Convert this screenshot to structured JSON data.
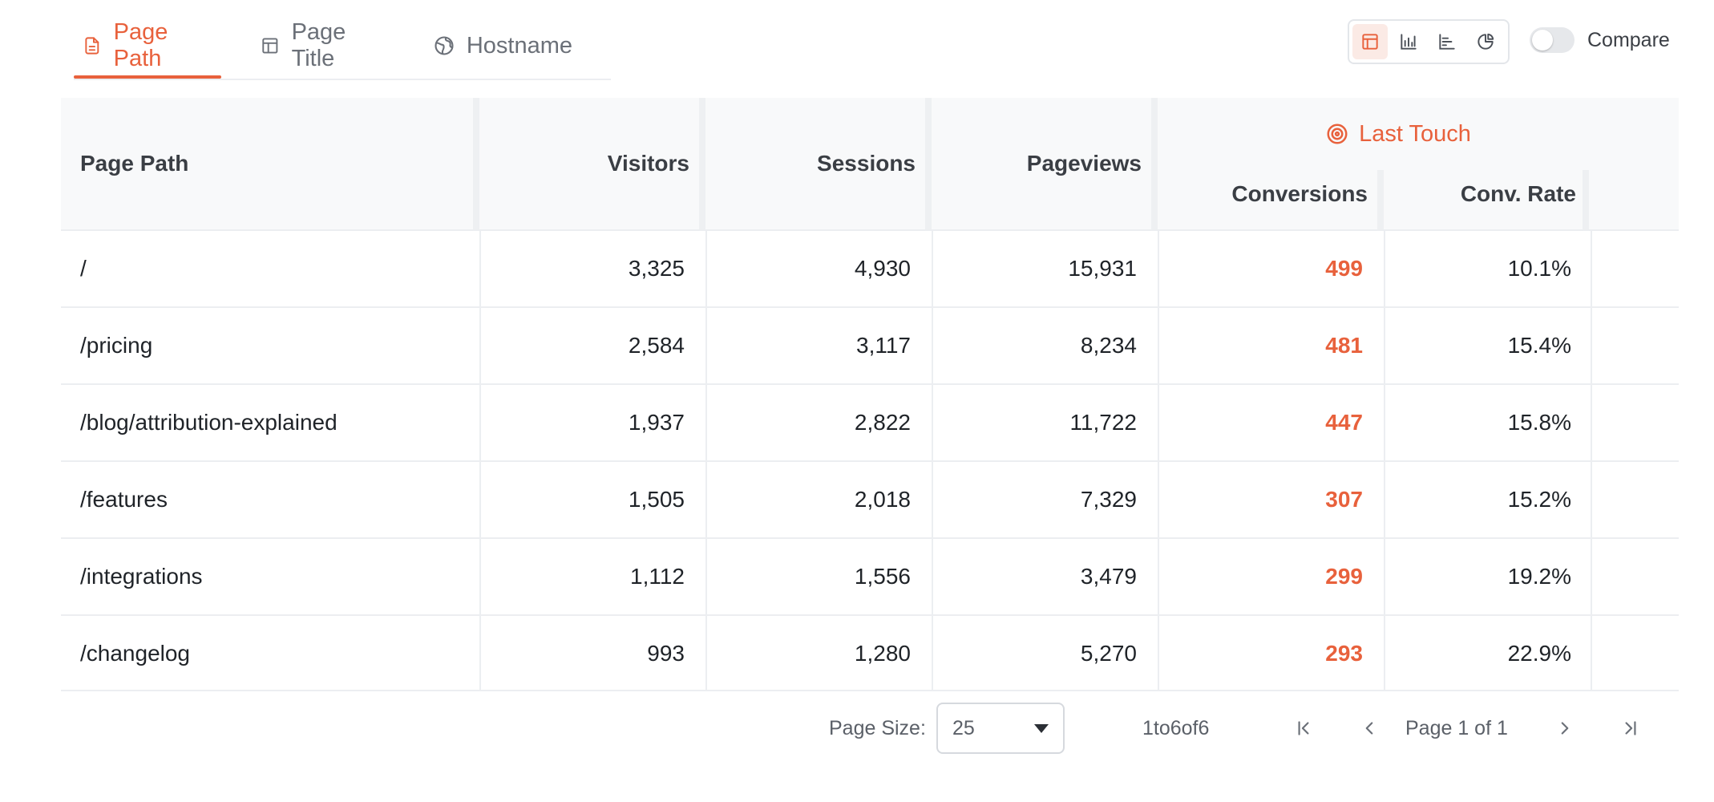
{
  "tabs": [
    {
      "label": "Page Path",
      "icon": "document-icon",
      "active": true
    },
    {
      "label": "Page Title",
      "icon": "layout-icon",
      "active": false
    },
    {
      "label": "Hostname",
      "icon": "globe-icon",
      "active": false
    }
  ],
  "view_switch": [
    "table-icon",
    "bar-chart-icon",
    "horizontal-bar-icon",
    "pie-chart-icon"
  ],
  "compare": {
    "label": "Compare",
    "enabled": false
  },
  "table": {
    "columns": {
      "page_path": "Page Path",
      "visitors": "Visitors",
      "sessions": "Sessions",
      "pageviews": "Pageviews",
      "group": "Last Touch",
      "conversions": "Conversions",
      "conv_rate": "Conv. Rate"
    },
    "rows": [
      {
        "path": "/",
        "visitors": "3,325",
        "sessions": "4,930",
        "pageviews": "15,931",
        "conversions": "499",
        "conv_rate": "10.1%"
      },
      {
        "path": "/pricing",
        "visitors": "2,584",
        "sessions": "3,117",
        "pageviews": "8,234",
        "conversions": "481",
        "conv_rate": "15.4%"
      },
      {
        "path": "/blog/attribution-explained",
        "visitors": "1,937",
        "sessions": "2,822",
        "pageviews": "11,722",
        "conversions": "447",
        "conv_rate": "15.8%"
      },
      {
        "path": "/features",
        "visitors": "1,505",
        "sessions": "2,018",
        "pageviews": "7,329",
        "conversions": "307",
        "conv_rate": "15.2%"
      },
      {
        "path": "/integrations",
        "visitors": "1,112",
        "sessions": "1,556",
        "pageviews": "3,479",
        "conversions": "299",
        "conv_rate": "19.2%"
      },
      {
        "path": "/changelog",
        "visitors": "993",
        "sessions": "1,280",
        "pageviews": "5,270",
        "conversions": "293",
        "conv_rate": "22.9%"
      }
    ]
  },
  "pagination": {
    "page_size_label": "Page Size:",
    "page_size": "25",
    "range": "1to6of6",
    "page_of": "Page 1 of 1"
  },
  "colors": {
    "accent": "#e8613c"
  }
}
